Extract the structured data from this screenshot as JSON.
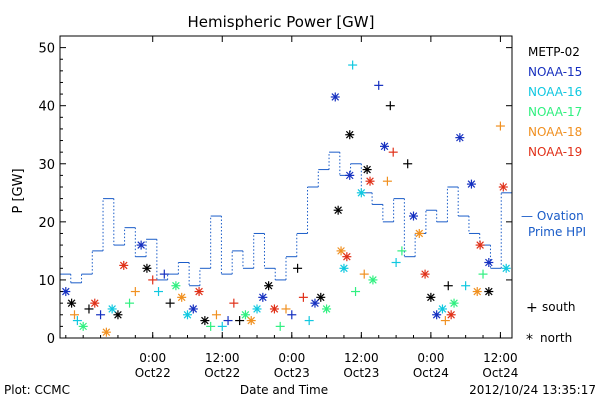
{
  "chart_data": {
    "type": "scatter",
    "title": "Hemispheric Power [GW]",
    "ylabel": "P [GW]",
    "xlabel": "Date and Time",
    "ylim": [
      0,
      52
    ],
    "xlim": [
      "2012-10-21T08:00",
      "2012-10-24T14:00"
    ],
    "yticks": [
      0,
      10,
      20,
      30,
      40,
      50
    ],
    "xticks": [
      {
        "t": "2012-10-22T00:00",
        "line1": "0:00",
        "line2": "Oct22"
      },
      {
        "t": "2012-10-22T12:00",
        "line1": "12:00",
        "line2": "Oct22"
      },
      {
        "t": "2012-10-23T00:00",
        "line1": "0:00",
        "line2": "Oct23"
      },
      {
        "t": "2012-10-23T12:00",
        "line1": "12:00",
        "line2": "Oct23"
      },
      {
        "t": "2012-10-24T00:00",
        "line1": "0:00",
        "line2": "Oct24"
      },
      {
        "t": "2012-10-24T12:00",
        "line1": "12:00",
        "line2": "Oct24"
      }
    ],
    "legend_position": "right",
    "series": [
      {
        "name": "METP-02",
        "color": "#000000",
        "points": [
          [
            "2012-10-21T10:00",
            6,
            "north"
          ],
          [
            "2012-10-21T13:00",
            5,
            "south"
          ],
          [
            "2012-10-21T18:00",
            4,
            "north"
          ],
          [
            "2012-10-21T23:00",
            12,
            "north"
          ],
          [
            "2012-10-22T03:00",
            6,
            "south"
          ],
          [
            "2012-10-22T09:00",
            3,
            "north"
          ],
          [
            "2012-10-22T15:00",
            3,
            "south"
          ],
          [
            "2012-10-22T20:00",
            9,
            "north"
          ],
          [
            "2012-10-23T01:00",
            12,
            "south"
          ],
          [
            "2012-10-23T05:00",
            7,
            "north"
          ],
          [
            "2012-10-23T08:00",
            22,
            "north"
          ],
          [
            "2012-10-23T10:00",
            35,
            "north"
          ],
          [
            "2012-10-23T13:00",
            29,
            "north"
          ],
          [
            "2012-10-23T17:00",
            40,
            "south"
          ],
          [
            "2012-10-23T20:00",
            30,
            "south"
          ],
          [
            "2012-10-24T00:00",
            7,
            "north"
          ],
          [
            "2012-10-24T03:00",
            9,
            "south"
          ],
          [
            "2012-10-24T10:00",
            8,
            "north"
          ]
        ]
      },
      {
        "name": "NOAA-15",
        "color": "#1530c0",
        "points": [
          [
            "2012-10-21T09:00",
            8,
            "north"
          ],
          [
            "2012-10-21T15:00",
            4,
            "south"
          ],
          [
            "2012-10-21T22:00",
            16,
            "north"
          ],
          [
            "2012-10-22T02:00",
            11,
            "south"
          ],
          [
            "2012-10-22T07:00",
            5,
            "north"
          ],
          [
            "2012-10-22T13:00",
            3,
            "south"
          ],
          [
            "2012-10-22T19:00",
            7,
            "north"
          ],
          [
            "2012-10-23T00:00",
            4,
            "south"
          ],
          [
            "2012-10-23T04:00",
            6,
            "north"
          ],
          [
            "2012-10-23T07:30",
            41.5,
            "north"
          ],
          [
            "2012-10-23T10:00",
            28,
            "north"
          ],
          [
            "2012-10-23T15:00",
            43.5,
            "south"
          ],
          [
            "2012-10-23T16:00",
            33,
            "north"
          ],
          [
            "2012-10-23T21:00",
            21,
            "north"
          ],
          [
            "2012-10-24T01:00",
            4,
            "north"
          ],
          [
            "2012-10-24T05:00",
            34.5,
            "north"
          ],
          [
            "2012-10-24T07:00",
            26.5,
            "north"
          ],
          [
            "2012-10-24T10:00",
            13,
            "north"
          ]
        ]
      },
      {
        "name": "NOAA-16",
        "color": "#10c8e0",
        "points": [
          [
            "2012-10-21T11:00",
            3,
            "south"
          ],
          [
            "2012-10-21T17:00",
            5,
            "north"
          ],
          [
            "2012-10-22T01:00",
            8,
            "south"
          ],
          [
            "2012-10-22T06:00",
            4,
            "north"
          ],
          [
            "2012-10-22T12:00",
            2,
            "south"
          ],
          [
            "2012-10-22T18:00",
            5,
            "north"
          ],
          [
            "2012-10-23T03:00",
            3,
            "south"
          ],
          [
            "2012-10-23T09:00",
            12,
            "north"
          ],
          [
            "2012-10-23T10:30",
            47,
            "south"
          ],
          [
            "2012-10-23T12:00",
            25,
            "north"
          ],
          [
            "2012-10-23T18:00",
            13,
            "south"
          ],
          [
            "2012-10-24T02:00",
            5,
            "north"
          ],
          [
            "2012-10-24T06:00",
            9,
            "south"
          ],
          [
            "2012-10-24T13:00",
            12,
            "north"
          ]
        ]
      },
      {
        "name": "NOAA-17",
        "color": "#30f080",
        "points": [
          [
            "2012-10-21T12:00",
            2,
            "north"
          ],
          [
            "2012-10-21T20:00",
            6,
            "south"
          ],
          [
            "2012-10-22T04:00",
            9,
            "north"
          ],
          [
            "2012-10-22T10:00",
            2,
            "south"
          ],
          [
            "2012-10-22T16:00",
            4,
            "north"
          ],
          [
            "2012-10-22T22:00",
            2,
            "south"
          ],
          [
            "2012-10-23T06:00",
            5,
            "north"
          ],
          [
            "2012-10-23T11:00",
            8,
            "south"
          ],
          [
            "2012-10-23T14:00",
            10,
            "north"
          ],
          [
            "2012-10-23T19:00",
            15,
            "south"
          ],
          [
            "2012-10-24T04:00",
            6,
            "north"
          ],
          [
            "2012-10-24T09:00",
            11,
            "south"
          ]
        ]
      },
      {
        "name": "NOAA-18",
        "color": "#f09020",
        "points": [
          [
            "2012-10-21T10:30",
            4,
            "south"
          ],
          [
            "2012-10-21T16:00",
            1,
            "north"
          ],
          [
            "2012-10-21T21:00",
            8,
            "south"
          ],
          [
            "2012-10-22T05:00",
            7,
            "north"
          ],
          [
            "2012-10-22T11:00",
            4,
            "south"
          ],
          [
            "2012-10-22T17:00",
            3,
            "north"
          ],
          [
            "2012-10-22T23:00",
            5,
            "south"
          ],
          [
            "2012-10-23T08:30",
            15,
            "north"
          ],
          [
            "2012-10-23T12:30",
            11,
            "south"
          ],
          [
            "2012-10-23T16:30",
            27,
            "south"
          ],
          [
            "2012-10-23T22:00",
            18,
            "north"
          ],
          [
            "2012-10-24T02:30",
            3,
            "south"
          ],
          [
            "2012-10-24T08:00",
            8,
            "north"
          ],
          [
            "2012-10-24T12:00",
            36.5,
            "south"
          ]
        ]
      },
      {
        "name": "NOAA-19",
        "color": "#e03018",
        "points": [
          [
            "2012-10-21T14:00",
            6,
            "north"
          ],
          [
            "2012-10-21T19:00",
            12.5,
            "north"
          ],
          [
            "2012-10-22T00:00",
            10,
            "south"
          ],
          [
            "2012-10-22T08:00",
            8,
            "north"
          ],
          [
            "2012-10-22T14:00",
            6,
            "south"
          ],
          [
            "2012-10-22T21:00",
            5,
            "north"
          ],
          [
            "2012-10-23T02:00",
            7,
            "south"
          ],
          [
            "2012-10-23T09:30",
            14,
            "north"
          ],
          [
            "2012-10-23T13:30",
            27,
            "north"
          ],
          [
            "2012-10-23T17:30",
            32,
            "south"
          ],
          [
            "2012-10-23T23:00",
            11,
            "north"
          ],
          [
            "2012-10-24T03:30",
            4,
            "north"
          ],
          [
            "2012-10-24T08:30",
            16,
            "north"
          ],
          [
            "2012-10-24T12:30",
            26,
            "north"
          ]
        ]
      }
    ],
    "ovation": {
      "name": "Ovation Prime HPI",
      "color": "#1a5cc8",
      "step_values": [
        11,
        9.5,
        11,
        15,
        24,
        16,
        19,
        14,
        17,
        10,
        11,
        13,
        9,
        12,
        21,
        11,
        15,
        12,
        18,
        12,
        10,
        14,
        18,
        26,
        29,
        32,
        28,
        30,
        25,
        23,
        20,
        24,
        14,
        18,
        22,
        20,
        26,
        21,
        18,
        16,
        12,
        25
      ],
      "label_line1": "— Ovation",
      "label_line2": "Prime HPI"
    },
    "marker_legend": [
      {
        "symbol": "+",
        "label": "south"
      },
      {
        "symbol": "*",
        "label": "north"
      }
    ]
  },
  "footer": {
    "left": "Plot: CCMC",
    "center": "Date and Time",
    "right": "2012/10/24 13:35:17"
  }
}
